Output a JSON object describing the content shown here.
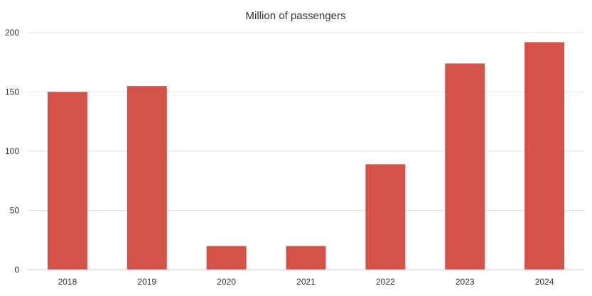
{
  "chart_data": {
    "type": "bar",
    "title": "Million of passengers",
    "xlabel": "",
    "ylabel": "",
    "categories": [
      "2018",
      "2019",
      "2020",
      "2021",
      "2022",
      "2023",
      "2024"
    ],
    "values": [
      150,
      155,
      20,
      20,
      89,
      174,
      192
    ],
    "ylim": [
      0,
      200
    ],
    "yticks": [
      0,
      50,
      100,
      150,
      200
    ],
    "grid": true,
    "legend": "none",
    "colors": {
      "bar": "#d35349"
    }
  }
}
